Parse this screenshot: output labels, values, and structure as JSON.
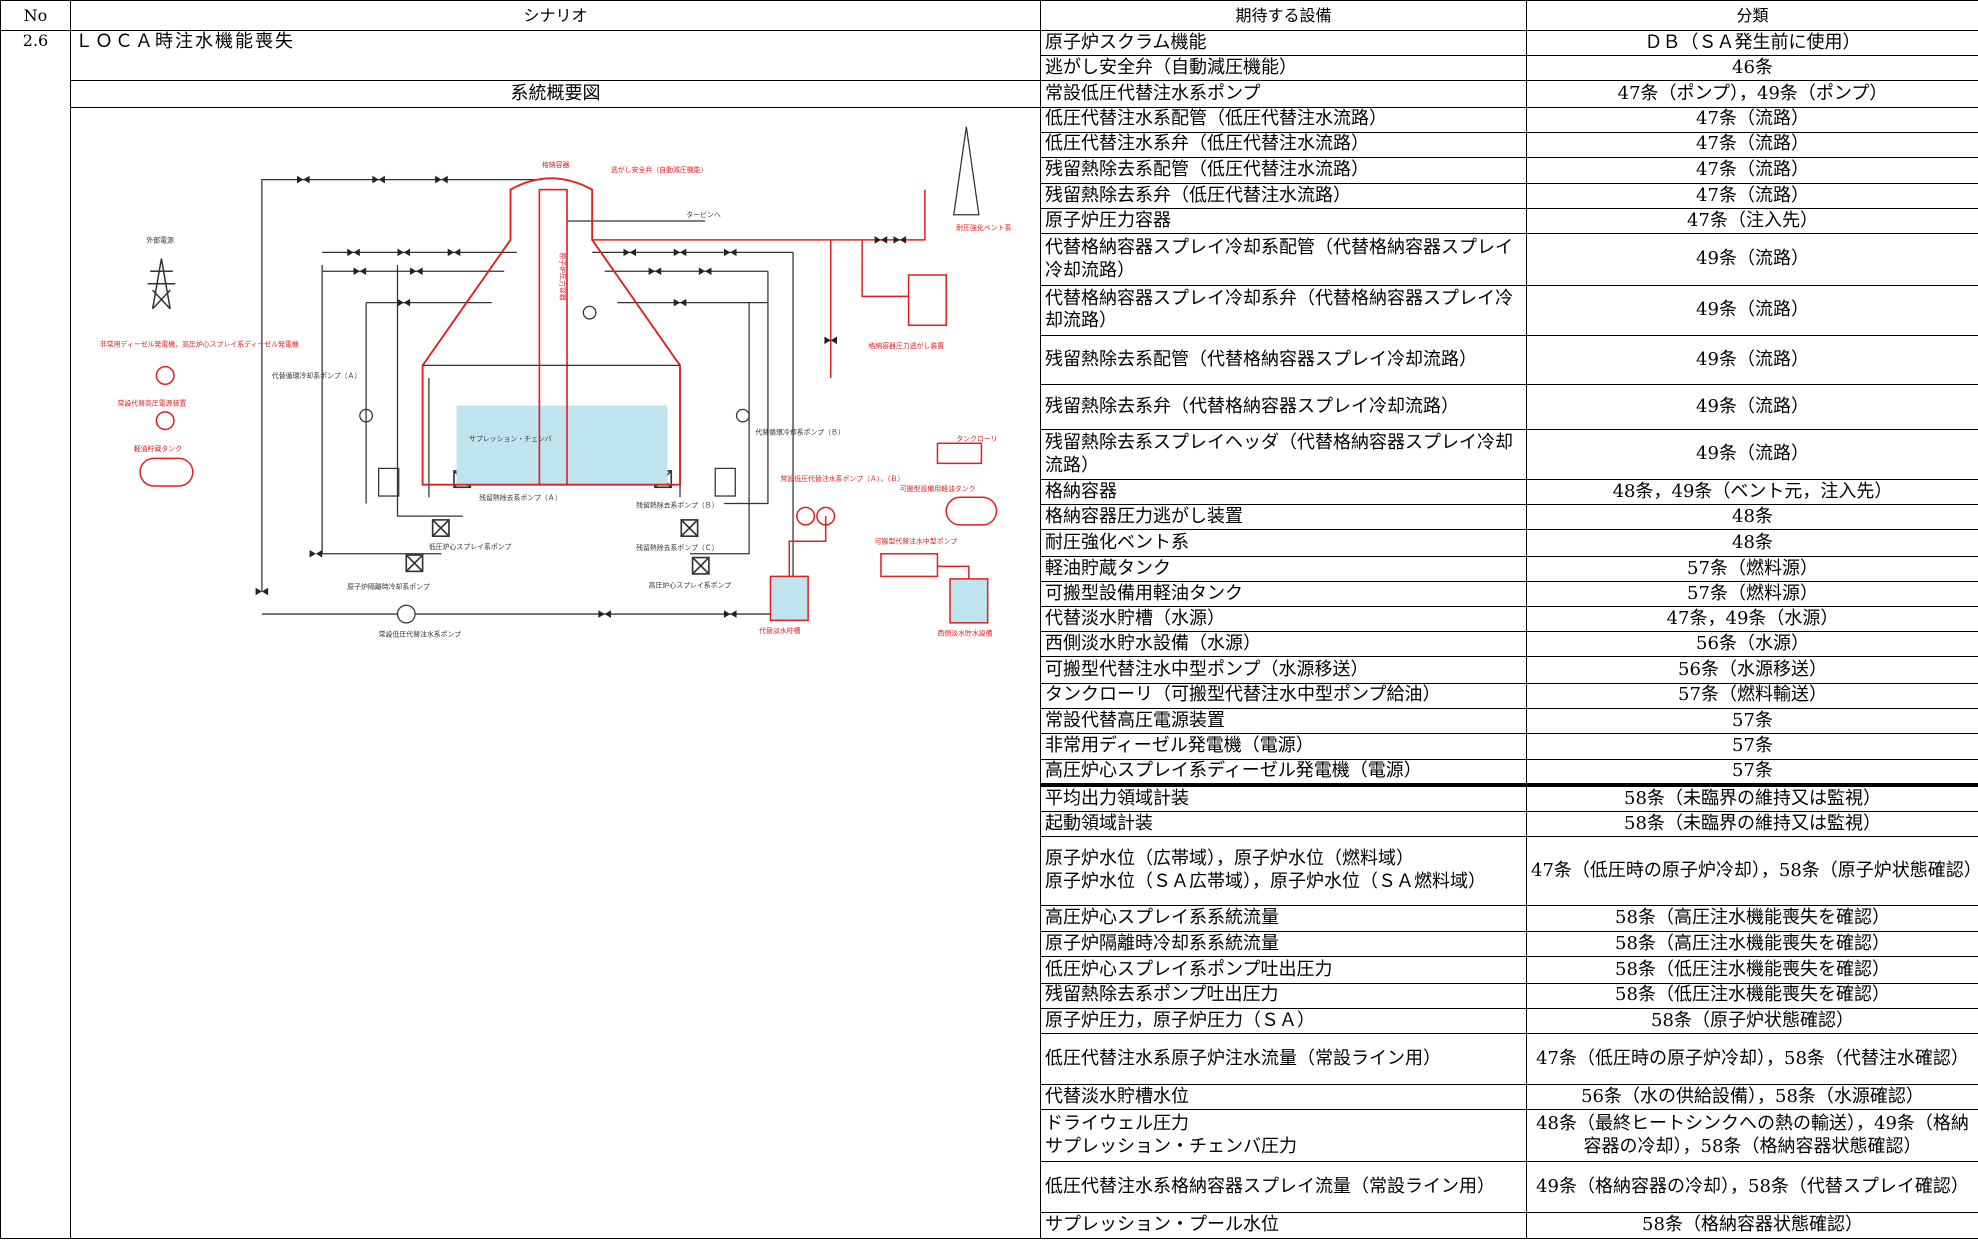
{
  "header": {
    "no": "No",
    "scenario": "シナリオ",
    "equipment": "期待する設備",
    "category": "分類"
  },
  "scenario": {
    "no": "2.6",
    "name": "ＬＯＣＡ時注水機能喪失",
    "diagram_title": "系統概要図"
  },
  "diagram": {
    "labels": [
      "格納容器",
      "逃がし安全弁（自動減圧機能）",
      "タービンへ",
      "耐圧強化ベント系",
      "外部電源",
      "非常用ディーゼル発電機，高圧炉心スプレイ系ディーゼル発電機",
      "常設代替高圧電源装置",
      "軽油貯蔵タンク",
      "サプレッション・チェンバ",
      "代替循環冷却系ポンプ（Ａ）",
      "残留熱除去系ポンプ（Ａ）",
      "低圧炉心スプレイ系ポンプ",
      "原子炉隔離時冷却系ポンプ",
      "残留熱除去系ポンプ（Ｂ）",
      "残留熱除去系ポンプ（Ｃ）",
      "高圧炉心スプレイ系ポンプ",
      "常設低圧代替注水系ポンプ",
      "常設低圧代替注水系ポンプ（Ａ），（Ｂ）",
      "可搬型代替注水中型ポンプ",
      "代替淡水貯槽",
      "西側淡水貯水設備",
      "タンクローリ",
      "可搬型設備用軽油タンク",
      "格納容器圧力逃がし装置",
      "原子炉圧力容器",
      "代替循環冷却系ポンプ（Ｂ）"
    ]
  },
  "rows": [
    [
      "原子炉スクラム機能",
      "ＤＢ（ＳＡ発生前に使用）"
    ],
    [
      "逃がし安全弁（自動減圧機能）",
      "46条"
    ],
    [
      "常設低圧代替注水系ポンプ",
      "47条（ポンプ），49条（ポンプ）"
    ],
    [
      "低圧代替注水系配管（低圧代替注水流路）",
      "47条（流路）"
    ],
    [
      "低圧代替注水系弁（低圧代替注水流路）",
      "47条（流路）"
    ],
    [
      "残留熱除去系配管（低圧代替注水流路）",
      "47条（流路）"
    ],
    [
      "残留熱除去系弁（低圧代替注水流路）",
      "47条（流路）"
    ],
    [
      "原子炉圧力容器",
      "47条（注入先）"
    ],
    [
      "代替格納容器スプレイ冷却系配管（代替格納容器スプレイ冷却流路）",
      "49条（流路）"
    ],
    [
      "代替格納容器スプレイ冷却系弁（代替格納容器スプレイ冷却流路）",
      "49条（流路）"
    ],
    [
      "残留熱除去系配管（代替格納容器スプレイ冷却流路）",
      "49条（流路）"
    ],
    [
      "残留熱除去系弁（代替格納容器スプレイ冷却流路）",
      "49条（流路）"
    ],
    [
      "残留熱除去系スプレイヘッダ（代替格納容器スプレイ冷却流路）",
      "49条（流路）"
    ],
    [
      "格納容器",
      "48条，49条（ベント元，注入先）"
    ],
    [
      "格納容器圧力逃がし装置",
      "48条"
    ],
    [
      "耐圧強化ベント系",
      "48条"
    ],
    [
      "軽油貯蔵タンク",
      "57条（燃料源）"
    ],
    [
      "可搬型設備用軽油タンク",
      "57条（燃料源）"
    ],
    [
      "代替淡水貯槽（水源）",
      "47条，49条（水源）"
    ],
    [
      "西側淡水貯水設備（水源）",
      "56条（水源）"
    ],
    [
      "可搬型代替注水中型ポンプ（水源移送）",
      "56条（水源移送）"
    ],
    [
      "タンクローリ（可搬型代替注水中型ポンプ給油）",
      "57条（燃料輸送）"
    ],
    [
      "常設代替高圧電源装置",
      "57条"
    ],
    [
      "非常用ディーゼル発電機（電源）",
      "57条"
    ],
    [
      "高圧炉心スプレイ系ディーゼル発電機（電源）",
      "57条"
    ],
    [
      "平均出力領域計装",
      "58条（未臨界の維持又は監視）"
    ],
    [
      "起動領域計装",
      "58条（未臨界の維持又は監視）"
    ],
    [
      "原子炉水位（広帯域），原子炉水位（燃料域）\n原子炉水位（ＳＡ広帯域），原子炉水位（ＳＡ燃料域）",
      "47条（低圧時の原子炉冷却），58条（原子炉状態確認）"
    ],
    [
      "高圧炉心スプレイ系系統流量",
      "58条（高圧注水機能喪失を確認）"
    ],
    [
      "原子炉隔離時冷却系系統流量",
      "58条（高圧注水機能喪失を確認）"
    ],
    [
      "低圧炉心スプレイ系ポンプ吐出圧力",
      "58条（低圧注水機能喪失を確認）"
    ],
    [
      "残留熱除去系ポンプ吐出圧力",
      "58条（低圧注水機能喪失を確認）"
    ],
    [
      "原子炉圧力，原子炉圧力（ＳＡ）",
      "58条（原子炉状態確認）"
    ],
    [
      "低圧代替注水系原子炉注水流量（常設ライン用）",
      "47条（低圧時の原子炉冷却），58条（代替注水確認）"
    ],
    [
      "代替淡水貯槽水位",
      "56条（水の供給設備），58条（水源確認）"
    ],
    [
      "ドライウェル圧力\nサプレッション・チェンバ圧力",
      "48条（最終ヒートシンクへの熱の輸送），49条（格納容器の冷却），58条（格納容器状態確認）"
    ],
    [
      "低圧代替注水系格納容器スプレイ流量（常設ライン用）",
      "49条（格納容器の冷却），58条（代替スプレイ確認）"
    ],
    [
      "サプレッション・プール水位",
      "58条（格納容器状態確認）"
    ]
  ]
}
